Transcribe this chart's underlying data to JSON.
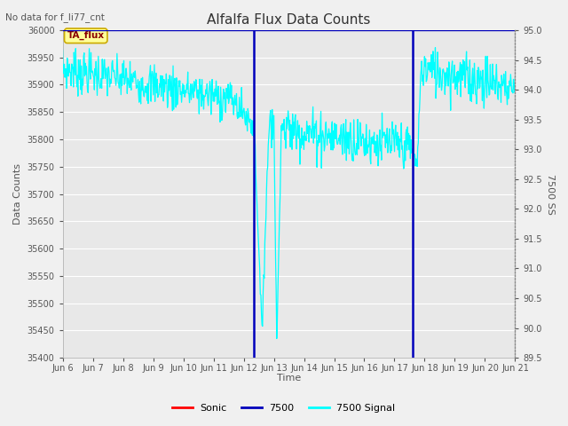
{
  "title": "Alfalfa Flux Data Counts",
  "top_left_text": "No data for f_li77_cnt",
  "ylabel_left": "Data Counts",
  "ylabel_right": "7500 SS",
  "xlabel": "Time",
  "ylim_left": [
    35400,
    36000
  ],
  "ylim_right": [
    89.5,
    95.0
  ],
  "yticks_left": [
    35400,
    35450,
    35500,
    35550,
    35600,
    35650,
    35700,
    35750,
    35800,
    35850,
    35900,
    35950,
    36000
  ],
  "yticks_right": [
    89.5,
    90.0,
    90.5,
    91.0,
    91.5,
    92.0,
    92.5,
    93.0,
    93.5,
    94.0,
    94.5,
    95.0
  ],
  "fig_bg_color": "#f0f0f0",
  "plot_bg_color": "#e8e8e8",
  "cyan_color": "cyan",
  "blue_color": "#0000bb",
  "red_color": "red",
  "vline1_x": 12.35,
  "vline2_x": 17.6,
  "annotation_box_text": "TA_flux",
  "annotation_box_color": "#ffff99",
  "annotation_box_edge": "#ccaa00",
  "xmin": 6,
  "xmax": 21,
  "xtick_positions": [
    6,
    7,
    8,
    9,
    10,
    11,
    12,
    13,
    14,
    15,
    16,
    17,
    18,
    19,
    20,
    21
  ],
  "xtick_labels": [
    "Jun 6",
    "Jun 7",
    "Jun 8",
    "Jun 9",
    "Jun 10",
    "Jun 11",
    "Jun 12",
    "Jun 13",
    "Jun 14",
    "Jun 15",
    "Jun 16",
    "Jun 17",
    "Jun 18",
    "Jun 19",
    "Jun 20",
    "Jun 21"
  ]
}
